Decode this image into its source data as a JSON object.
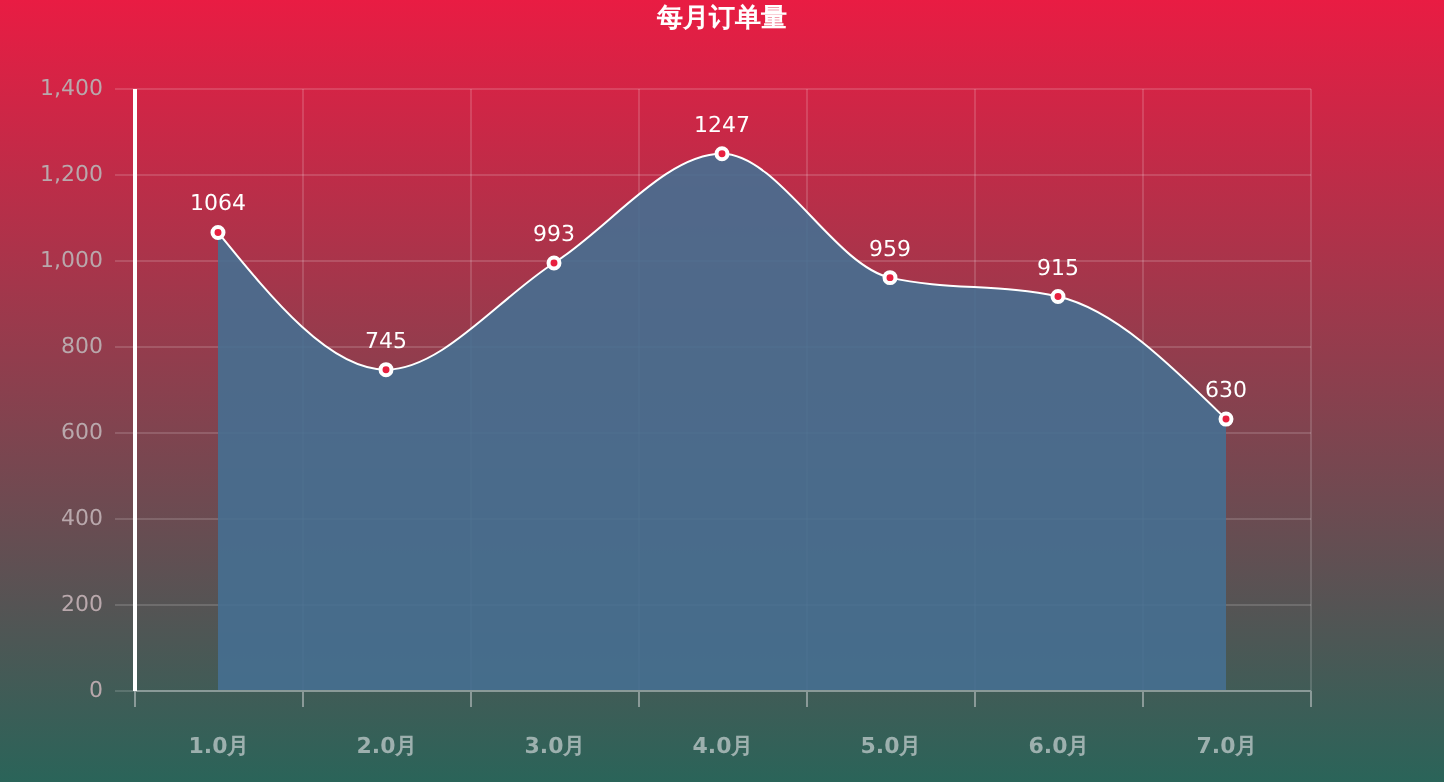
{
  "chart_data": {
    "type": "area",
    "title": "每月订单量",
    "categories": [
      "1.0月",
      "2.0月",
      "3.0月",
      "4.0月",
      "5.0月",
      "6.0月",
      "7.0月"
    ],
    "series": [
      {
        "color": "#466f91",
        "values": [
          1064,
          745,
          993,
          1247,
          959,
          915,
          630
        ]
      }
    ],
    "ylim": [
      0,
      1400
    ],
    "yticks": [
      {
        "value": 0,
        "label": "0"
      },
      {
        "value": 200,
        "label": "200"
      },
      {
        "value": 400,
        "label": "400"
      },
      {
        "value": 600,
        "label": "600"
      },
      {
        "value": 800,
        "label": "800"
      },
      {
        "value": 1000,
        "label": "1,000"
      },
      {
        "value": 1200,
        "label": "1,200"
      },
      {
        "value": 1400,
        "label": "1,400"
      }
    ],
    "grid": true,
    "marker": "circle",
    "data_labels": true
  }
}
